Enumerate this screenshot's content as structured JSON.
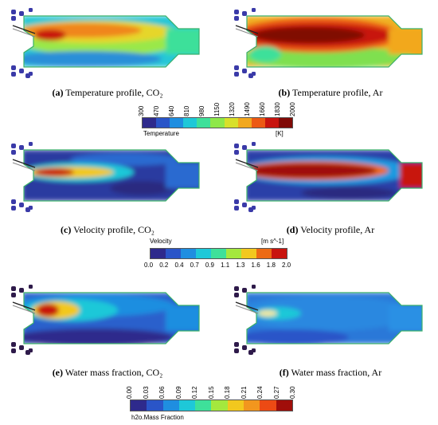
{
  "panels": [
    {
      "letter": "(a)",
      "text": " Temperature profile, CO₂",
      "variant": "temp-co2"
    },
    {
      "letter": "(b)",
      "text": " Temperature profile, Ar",
      "variant": "temp-ar"
    },
    {
      "letter": "(c)",
      "text": " Velocity profile, CO₂",
      "variant": "vel-co2"
    },
    {
      "letter": "(d)",
      "text": " Velocity profile, Ar",
      "variant": "vel-ar"
    },
    {
      "letter": "(e)",
      "text": " Water mass fraction, CO₂",
      "variant": "h2o-co2"
    },
    {
      "letter": "(f)",
      "text": " Water mass fraction, Ar",
      "variant": "h2o-ar"
    }
  ],
  "colorbars": {
    "temperature": {
      "title": "Temperature",
      "unit": "[K]",
      "ticks": [
        "300",
        "470",
        "640",
        "810",
        "980",
        "1150",
        "1320",
        "1490",
        "1660",
        "1830",
        "2000"
      ],
      "colors": [
        "#2e2a8c",
        "#2a55c8",
        "#1f8ee0",
        "#1ec8d8",
        "#3ee09a",
        "#8ee84a",
        "#d8e02a",
        "#f2a81e",
        "#ec5a14",
        "#c8140e",
        "#800a06"
      ]
    },
    "velocity": {
      "title": "Velocity",
      "unit": "[m s^-1]",
      "ticks": [
        "0.0",
        "0.2",
        "0.4",
        "0.7",
        "0.9",
        "1.1",
        "1.3",
        "1.6",
        "1.8",
        "2.0"
      ],
      "colors": [
        "#2e2a8c",
        "#2a55c8",
        "#1f8ee0",
        "#1ec8d8",
        "#3ee09a",
        "#a4e83e",
        "#f2c81e",
        "#ec6a14",
        "#c8140e"
      ]
    },
    "water": {
      "title": "h2o.Mass Fraction",
      "ticks": [
        "0.00",
        "0.03",
        "0.06",
        "0.09",
        "0.12",
        "0.15",
        "0.18",
        "0.21",
        "0.24",
        "0.27",
        "0.30"
      ],
      "colors": [
        "#2e2a8c",
        "#2a55c8",
        "#1f8ee0",
        "#1ec8d8",
        "#3ee09a",
        "#a4e83e",
        "#f2c81e",
        "#f2961e",
        "#ec4a14",
        "#a00e0a"
      ]
    }
  }
}
